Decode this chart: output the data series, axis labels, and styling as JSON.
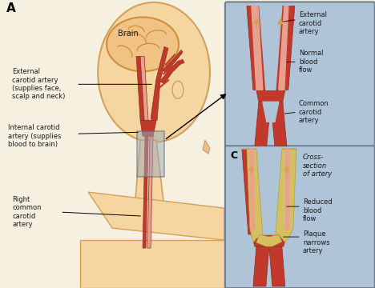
{
  "bg_color": "#f5f0e0",
  "title_A": "A",
  "title_C": "C",
  "labels": {
    "brain": "Brain",
    "external_carotid": "External\ncarotid artery\n(supplies face,\nscalp and neck)",
    "internal_carotid": "Internal carotid\nartery (supplies\nblood to brain)",
    "right_common": "Right\ncommon\ncarotid\nartery",
    "ext_carotid_panel": "External\ncarotid\nartery",
    "normal_flow": "Normal\nblood\nflow",
    "common_carotid_panel": "Common\ncarotid\nartery",
    "cross_section": "Cross-\nsection\nof artery",
    "reduced_flow": "Reduced\nblood\nflow",
    "plaque": "Plaque\nnarrows\nartery"
  },
  "face_skin": "#f5d5a0",
  "face_outline": "#d4a060",
  "brain_color": "#f0c080",
  "brain_outline": "#cc8833",
  "artery_red": "#c0392b",
  "artery_dark": "#922b21",
  "artery_light": "#e8a090",
  "panel_bg": "#b0c4d8",
  "panel_border": "#708090",
  "plaque_color": "#d4c060",
  "arrow_color": "#d4a060",
  "text_color": "#1a1a1a",
  "box_color": "#9aabb8"
}
